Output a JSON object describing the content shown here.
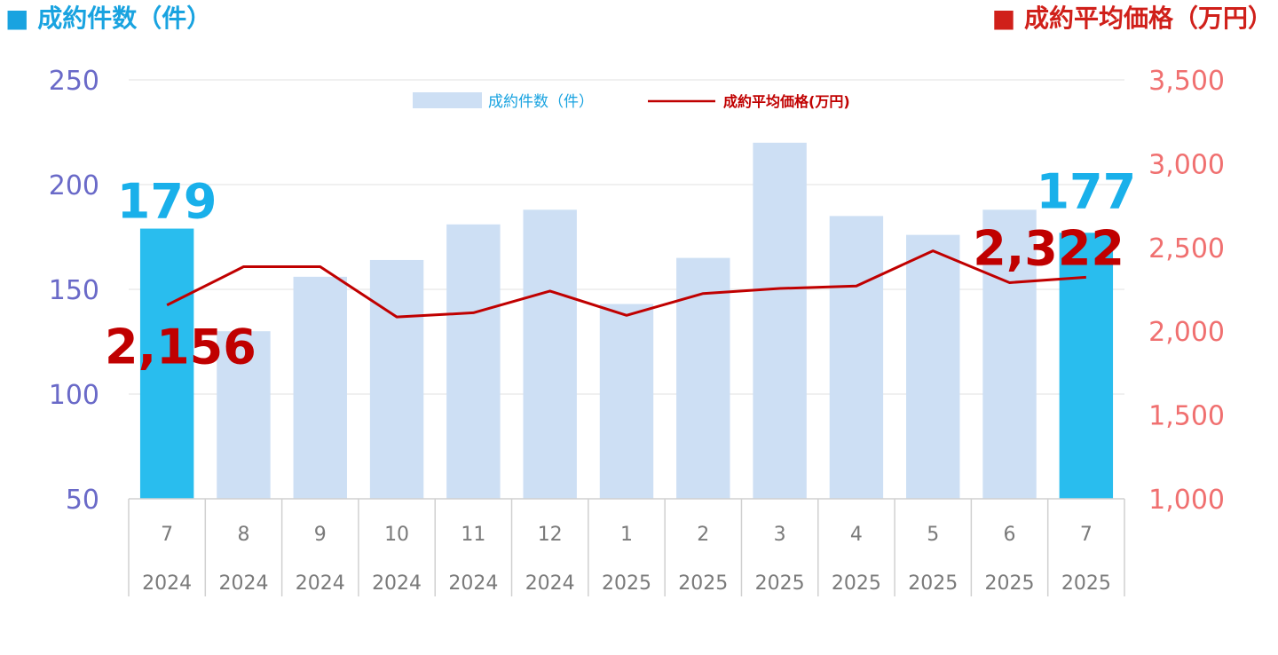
{
  "chart_data": {
    "type": "bar+line",
    "header_left": "■ 成約件数（件）",
    "header_right": "■ 成約平均価格（万円）",
    "categories": [
      {
        "month": "7",
        "year": "2024"
      },
      {
        "month": "8",
        "year": "2024"
      },
      {
        "month": "9",
        "year": "2024"
      },
      {
        "month": "10",
        "year": "2024"
      },
      {
        "month": "11",
        "year": "2024"
      },
      {
        "month": "12",
        "year": "2024"
      },
      {
        "month": "1",
        "year": "2025"
      },
      {
        "month": "2",
        "year": "2025"
      },
      {
        "month": "3",
        "year": "2025"
      },
      {
        "month": "4",
        "year": "2025"
      },
      {
        "month": "5",
        "year": "2025"
      },
      {
        "month": "6",
        "year": "2025"
      },
      {
        "month": "7",
        "year": "2025"
      }
    ],
    "series": [
      {
        "name": "成約件数（件）",
        "kind": "bar",
        "axis": "left",
        "values": [
          179,
          130,
          156,
          164,
          181,
          188,
          143,
          165,
          220,
          185,
          176,
          188,
          177
        ],
        "color": "#cddff4",
        "highlight_color": "#29bdee",
        "highlight_indices": [
          0,
          12
        ]
      },
      {
        "name": "成約平均価格(万円)",
        "kind": "line",
        "axis": "right",
        "values": [
          2156,
          2385,
          2385,
          2085,
          2110,
          2240,
          2095,
          2225,
          2255,
          2270,
          2480,
          2290,
          2322
        ],
        "color": "#c00000"
      }
    ],
    "y_left": {
      "min": 50,
      "max": 250,
      "ticks": [
        "250",
        "200",
        "150",
        "100",
        "50"
      ],
      "color": "#6a6ac8"
    },
    "y_right": {
      "min": 1000,
      "max": 3500,
      "ticks": [
        "3,500",
        "3,000",
        "2,500",
        "2,000",
        "1,500",
        "1,000"
      ],
      "color": "#f07070"
    },
    "annotations": [
      {
        "text": "179",
        "color": "#19b0ea",
        "series": 0,
        "index": 0
      },
      {
        "text": "177",
        "color": "#19b0ea",
        "series": 0,
        "index": 12
      },
      {
        "text": "2,156",
        "color": "#c00000",
        "series": 1,
        "index": 0
      },
      {
        "text": "2,322",
        "color": "#c00000",
        "series": 1,
        "index": 12
      }
    ],
    "legend": {
      "position": "top-center"
    },
    "grid": true
  }
}
